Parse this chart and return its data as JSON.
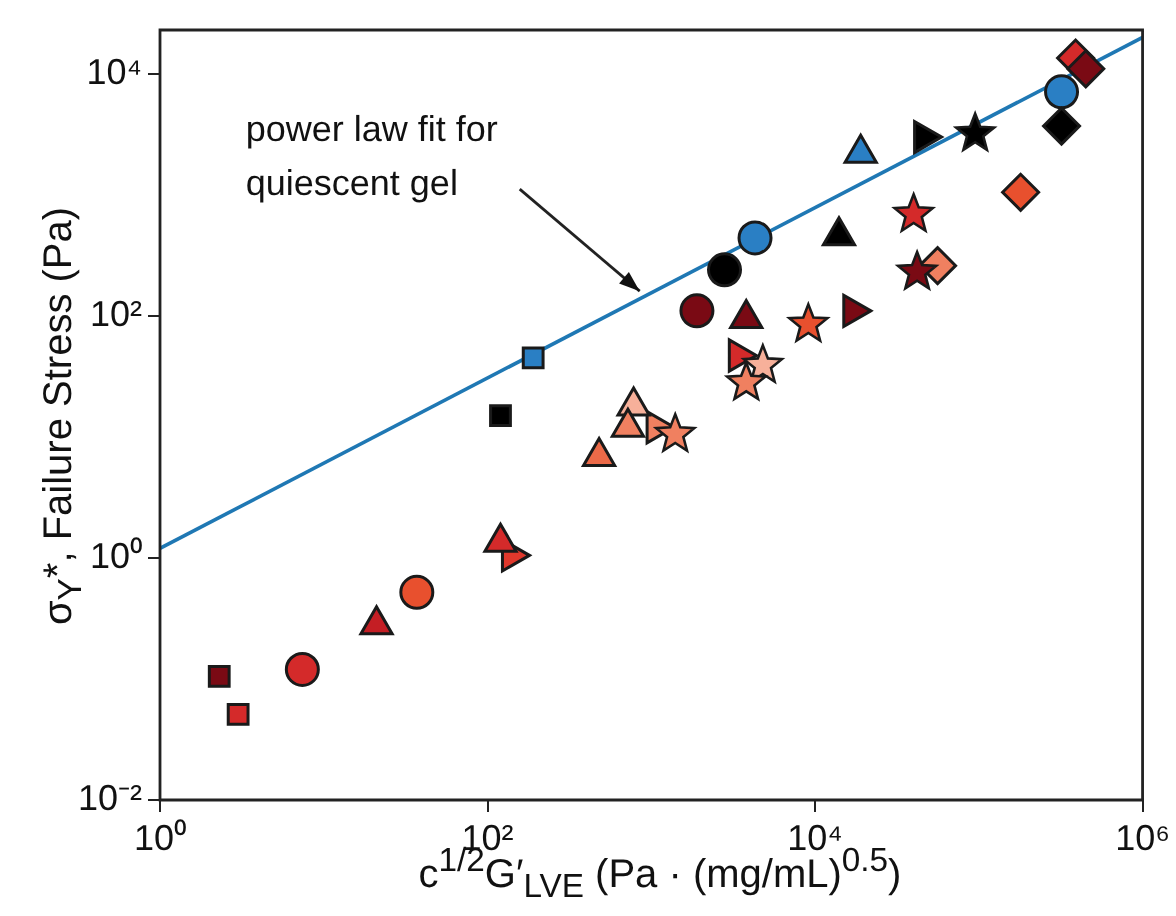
{
  "chart_data": {
    "type": "scatter",
    "xlabel": "c$^{1/2}$G′$_{LVE}$ (Pa · (mg/mL)$^{0.5}$)",
    "ylabel": "σ$_{Y}$*, Failure Stress (Pa)",
    "log": "xy",
    "grid": false,
    "legend": false,
    "xlim": [
      1,
      1000000
    ],
    "ylim": [
      0.01,
      23000
    ],
    "xticks": [
      {
        "value": 1,
        "label": "10⁰"
      },
      {
        "value": 100,
        "label": "10²"
      },
      {
        "value": 10000,
        "label": "10⁴"
      },
      {
        "value": 1000000,
        "label": "10⁶"
      }
    ],
    "yticks": [
      {
        "value": 0.01,
        "label": "10⁻²"
      },
      {
        "value": 1,
        "label": "10⁰"
      },
      {
        "value": 100,
        "label": "10²"
      },
      {
        "value": 10000,
        "label": "10⁴"
      }
    ],
    "annotations": [
      {
        "text": "power law fit for quiescent gel",
        "x": 850,
        "y": 160
      }
    ],
    "series": [
      {
        "type": "line",
        "marker": "none",
        "color": "#1f78b4",
        "x": [
          1,
          1000000
        ],
        "values": [
          1.2,
          20000
        ]
      },
      {
        "marker": "diamond",
        "x": [
          390000,
          450000,
          320000,
          180000,
          56000
        ],
        "values": [
          13500,
          11000,
          3700,
          1050,
          260
        ],
        "colors": [
          "#d42a2a",
          "#7a0a14",
          "#000000",
          "#e8502e",
          "#f08060"
        ]
      },
      {
        "marker": "circle",
        "x": [
          320000,
          4300,
          2800,
          1900,
          37,
          7.4
        ],
        "values": [
          7100,
          440,
          240,
          110,
          0.52,
          0.12
        ],
        "colors": [
          "#2a7fc4",
          "#2a7fc4",
          "#000000",
          "#7a0a14",
          "#e8502e",
          "#d42a2a"
        ]
      },
      {
        "marker": "triangle",
        "x": [
          19000,
          14000,
          3800,
          780,
          720,
          480,
          120,
          21
        ],
        "values": [
          2200,
          460,
          95,
          18,
          12,
          6.9,
          1.35,
          0.28
        ],
        "colors": [
          "#2a7fc4",
          "#000000",
          "#7a0a14",
          "#f7b09a",
          "#f08060",
          "#ec6a48",
          "#d42a2a",
          "#c41e24"
        ]
      },
      {
        "marker": "triangle-right",
        "x": [
          46000,
          17000,
          3400,
          1070,
          140
        ],
        "values": [
          3000,
          110,
          47,
          12,
          1.05
        ],
        "colors": [
          "#000000",
          "#7a0a14",
          "#d42a2a",
          "#f08060",
          "#e0382c"
        ]
      },
      {
        "marker": "star",
        "x": [
          95000,
          40000,
          42000,
          9100,
          4800,
          3800,
          1400
        ],
        "values": [
          3200,
          690,
          230,
          85,
          39,
          28,
          10.5
        ],
        "colors": [
          "#000000",
          "#d42a2a",
          "#7a0a14",
          "#e8502e",
          "#f7b09a",
          "#f08060",
          "#f08060"
        ]
      },
      {
        "marker": "square",
        "x": [
          190,
          120,
          2.3,
          3
        ],
        "values": [
          45,
          15,
          0.105,
          0.051
        ],
        "colors": [
          "#2a7fc4",
          "#000000",
          "#7a0a14",
          "#d42a2a"
        ]
      }
    ]
  }
}
